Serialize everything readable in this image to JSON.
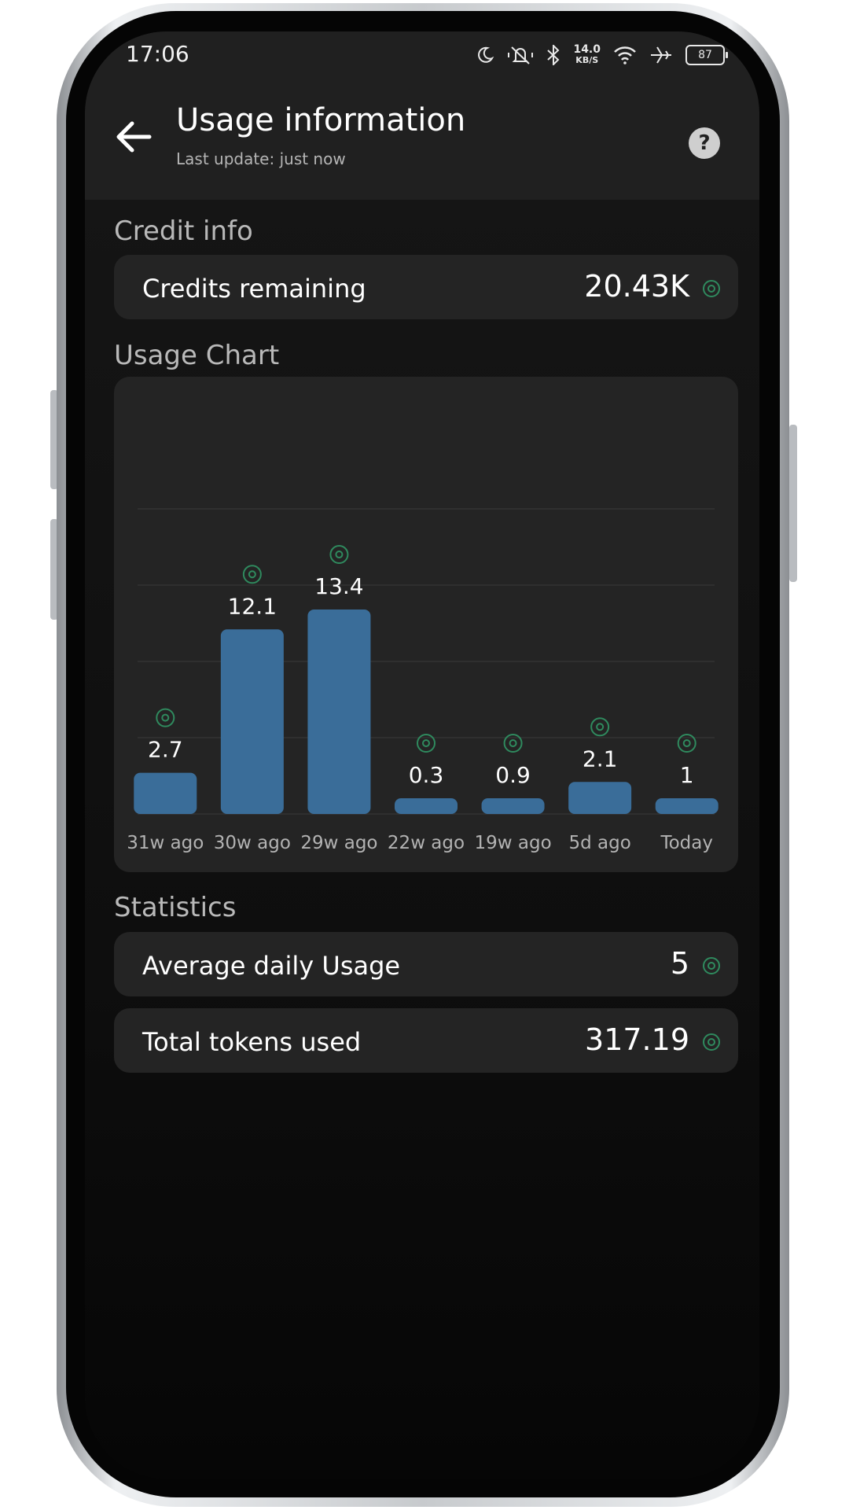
{
  "status_bar": {
    "time": "17:06",
    "net_speed_value": "14.0",
    "net_speed_unit": "KB/S",
    "battery": "87"
  },
  "header": {
    "title": "Usage information",
    "subtitle": "Last update: just now"
  },
  "credit_info": {
    "section_title": "Credit info",
    "credits_label": "Credits remaining",
    "credits_value": "20.43K"
  },
  "usage_chart": {
    "section_title": "Usage Chart"
  },
  "statistics": {
    "section_title": "Statistics",
    "avg_label": "Average daily Usage",
    "avg_value": "5",
    "total_label": "Total tokens used",
    "total_value": "317.19"
  },
  "colors": {
    "bar": "#3a6d99",
    "token_icon": "#2f8a5e",
    "background": "#0b0b0b",
    "card": "#242424"
  },
  "chart_data": {
    "type": "bar",
    "categories": [
      "31w ago",
      "30w ago",
      "29w ago",
      "22w ago",
      "19w ago",
      "5d ago",
      "Today"
    ],
    "values": [
      2.7,
      12.1,
      13.4,
      0.3,
      0.9,
      2.1,
      1
    ],
    "value_labels": [
      "2.7",
      "12.1",
      "13.4",
      "0.3",
      "0.9",
      "2.1",
      "1"
    ],
    "ylim": [
      0,
      20
    ],
    "grid": true,
    "title": "",
    "xlabel": "",
    "ylabel": ""
  }
}
